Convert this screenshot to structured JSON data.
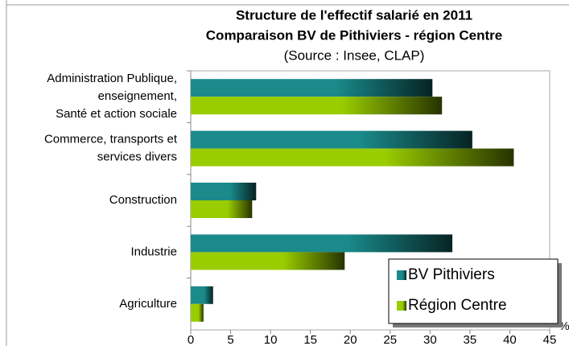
{
  "chart_data": {
    "type": "hbar",
    "title": "Structure de l'effectif salarié en 2011",
    "subtitle": "Comparaison BV de Pithiviers - région Centre",
    "source": "(Source : Insee, CLAP)",
    "x_label": "%",
    "categories": [
      "Administration Publique,\nenseignement,\nSanté et action sociale",
      "Commerce, transports et\nservices divers",
      "Construction",
      "Industrie",
      "Agriculture"
    ],
    "series": [
      {
        "name": "BV Pithiviers",
        "color": "#1a8a8a",
        "values": [
          30.3,
          35.3,
          8.2,
          32.8,
          2.8
        ]
      },
      {
        "name": "Région Centre",
        "color": "#9acd00",
        "values": [
          31.5,
          40.5,
          7.7,
          19.3,
          1.6
        ]
      }
    ],
    "xlim": [
      0,
      45
    ],
    "xticks": [
      0,
      5,
      10,
      15,
      20,
      25,
      30,
      35,
      40,
      45
    ],
    "legend": "lower right"
  }
}
